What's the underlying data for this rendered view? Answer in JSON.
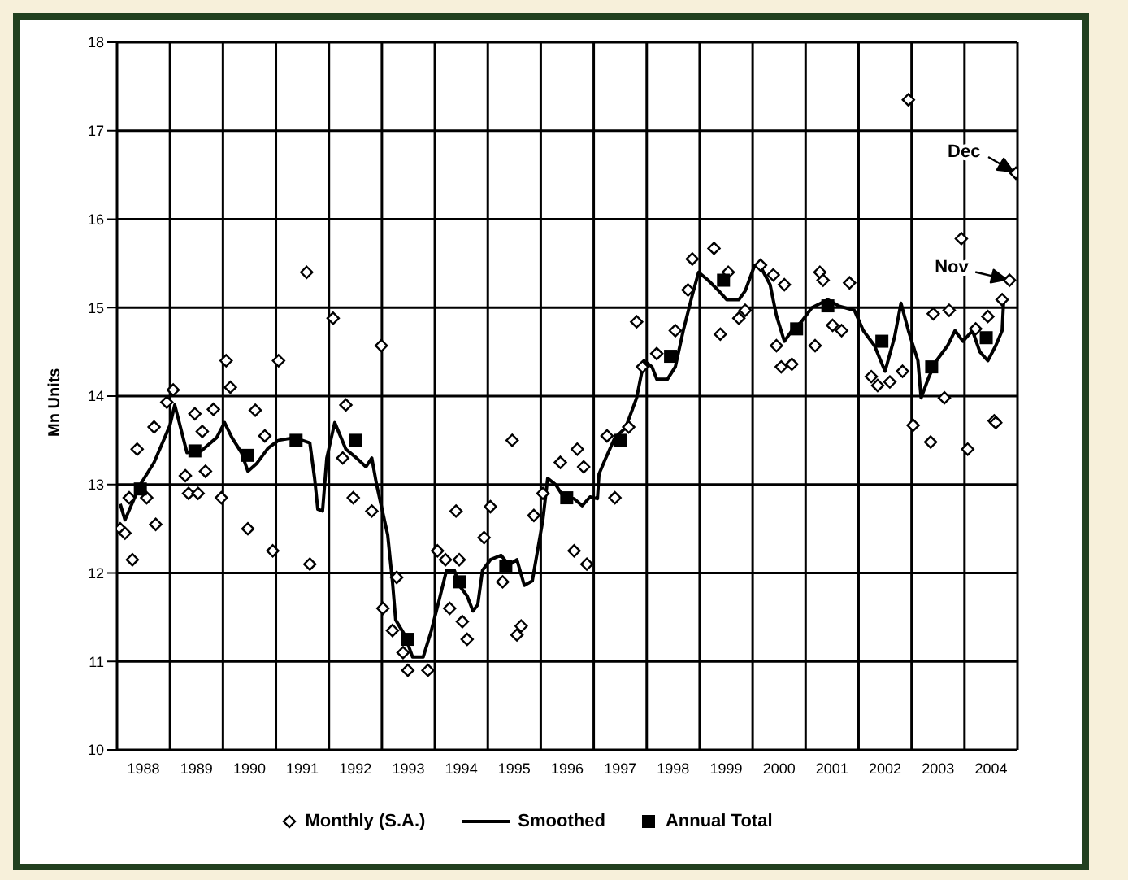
{
  "chart_data": {
    "type": "scatter",
    "ylabel": "Mn Units",
    "xlim": [
      1988,
      2005
    ],
    "xticks": [
      {
        "value": 1988,
        "label": null
      },
      {
        "value": 1988.5,
        "label": "1988"
      },
      {
        "value": 1989,
        "label": null
      },
      {
        "value": 1989.5,
        "label": "1989"
      },
      {
        "value": 1990,
        "label": null
      },
      {
        "value": 1990.5,
        "label": "1990"
      },
      {
        "value": 1991,
        "label": null
      },
      {
        "value": 1991.5,
        "label": "1991"
      },
      {
        "value": 1992,
        "label": null
      },
      {
        "value": 1992.5,
        "label": "1992"
      },
      {
        "value": 1993,
        "label": null
      },
      {
        "value": 1993.5,
        "label": "1993"
      },
      {
        "value": 1994,
        "label": null
      },
      {
        "value": 1994.5,
        "label": "1994"
      },
      {
        "value": 1995,
        "label": null
      },
      {
        "value": 1995.5,
        "label": "1995"
      },
      {
        "value": 1996,
        "label": null
      },
      {
        "value": 1996.5,
        "label": "1996"
      },
      {
        "value": 1997,
        "label": null
      },
      {
        "value": 1997.5,
        "label": "1997"
      },
      {
        "value": 1998,
        "label": null
      },
      {
        "value": 1998.5,
        "label": "1998"
      },
      {
        "value": 1999,
        "label": null
      },
      {
        "value": 1999.5,
        "label": "1999"
      },
      {
        "value": 2000,
        "label": null
      },
      {
        "value": 2000.5,
        "label": "2000"
      },
      {
        "value": 2001,
        "label": null
      },
      {
        "value": 2001.5,
        "label": "2001"
      },
      {
        "value": 2002,
        "label": null
      },
      {
        "value": 2002.5,
        "label": "2002"
      },
      {
        "value": 2003,
        "label": null
      },
      {
        "value": 2003.5,
        "label": "2003"
      },
      {
        "value": 2004,
        "label": null
      },
      {
        "value": 2004.5,
        "label": "2004"
      },
      {
        "value": 2005,
        "label": null
      }
    ],
    "ylim": [
      10,
      18
    ],
    "yticks": [
      10,
      11,
      12,
      13,
      14,
      15,
      16,
      17,
      18
    ],
    "grid": true,
    "legend": "bottom",
    "series": [
      {
        "name": "Monthly (S.A.)",
        "marker": "diamond",
        "color": "#000000",
        "x": [
          1988.06,
          1988.15,
          1988.29,
          1988.38,
          1988.23,
          1988.56,
          1988.73,
          1988.7,
          1988.94,
          1989.06,
          1989.29,
          1989.35,
          1989.53,
          1989.47,
          1989.61,
          1989.67,
          1989.82,
          1989.97,
          1990.06,
          1990.14,
          1990.47,
          1990.61,
          1990.79,
          1990.94,
          1991.05,
          1991.58,
          1991.64,
          1992.08,
          1992.26,
          1992.32,
          1992.46,
          1992.81,
          1992.99,
          1993.02,
          1993.2,
          1993.28,
          1993.4,
          1993.49,
          1993.87,
          1994.05,
          1994.2,
          1994.28,
          1994.4,
          1994.46,
          1994.52,
          1994.61,
          1994.93,
          1995.05,
          1995.28,
          1995.46,
          1995.55,
          1995.63,
          1995.87,
          1996.04,
          1996.37,
          1996.63,
          1996.69,
          1996.81,
          1996.87,
          1997.25,
          1997.4,
          1997.66,
          1997.81,
          1997.92,
          1998.19,
          1998.54,
          1998.78,
          1998.86,
          1999.27,
          1999.39,
          1999.54,
          1999.74,
          1999.86,
          2000.15,
          2000.39,
          2000.45,
          2000.54,
          2000.6,
          2000.74,
          2001.18,
          2001.27,
          2001.33,
          2001.51,
          2001.68,
          2001.83,
          2002.24,
          2002.36,
          2002.59,
          2002.83,
          2002.94,
          2003.03,
          2003.36,
          2003.41,
          2003.62,
          2003.71,
          2003.94,
          2004.06,
          2004.21,
          2004.44,
          2004.56,
          2004.59,
          2004.71,
          2004.85,
          2004.97
        ],
        "values": [
          12.5,
          12.45,
          12.15,
          13.4,
          12.85,
          12.85,
          12.55,
          13.65,
          13.93,
          14.07,
          13.1,
          12.9,
          12.9,
          13.8,
          13.6,
          13.15,
          13.85,
          12.85,
          14.4,
          14.1,
          12.5,
          13.84,
          13.55,
          12.25,
          14.4,
          15.4,
          12.1,
          14.88,
          13.3,
          13.9,
          12.85,
          12.7,
          14.57,
          11.6,
          11.35,
          11.95,
          11.1,
          10.9,
          10.9,
          12.25,
          12.15,
          11.6,
          12.7,
          12.15,
          11.45,
          11.25,
          12.4,
          12.75,
          11.9,
          13.5,
          11.3,
          11.4,
          12.65,
          12.9,
          13.25,
          12.25,
          13.4,
          13.2,
          12.1,
          13.55,
          12.85,
          13.65,
          14.84,
          14.33,
          14.48,
          14.74,
          15.2,
          15.55,
          15.67,
          14.7,
          15.4,
          14.88,
          14.97,
          15.48,
          15.37,
          14.57,
          14.33,
          15.26,
          14.36,
          14.57,
          15.4,
          15.31,
          14.8,
          14.74,
          15.28,
          14.22,
          14.12,
          14.16,
          14.28,
          17.35,
          13.67,
          13.48,
          14.93,
          13.98,
          14.97,
          15.78,
          13.4,
          14.76,
          14.9,
          13.72,
          13.7,
          15.09,
          15.31,
          16.52
        ]
      },
      {
        "name": "Smoothed",
        "type": "line",
        "marker": "none",
        "line_style": "solid",
        "color": "#000000",
        "x": [
          1988.06,
          1988.15,
          1988.44,
          1988.7,
          1989.0,
          1989.09,
          1989.32,
          1989.59,
          1989.88,
          1990.03,
          1990.17,
          1990.35,
          1990.47,
          1990.64,
          1990.85,
          1991.05,
          1991.35,
          1991.64,
          1991.73,
          1991.79,
          1991.88,
          1991.96,
          1992.11,
          1992.32,
          1992.52,
          1992.7,
          1992.81,
          1992.9,
          1993.11,
          1993.2,
          1993.26,
          1993.43,
          1993.58,
          1993.78,
          1993.93,
          1994.08,
          1994.22,
          1994.37,
          1994.46,
          1994.61,
          1994.72,
          1994.81,
          1994.9,
          1995.05,
          1995.25,
          1995.4,
          1995.55,
          1995.69,
          1995.84,
          1996.04,
          1996.13,
          1996.28,
          1996.43,
          1996.63,
          1996.78,
          1996.93,
          1997.07,
          1997.1,
          1997.22,
          1997.4,
          1997.6,
          1997.81,
          1997.95,
          1998.1,
          1998.19,
          1998.39,
          1998.54,
          1998.69,
          1998.86,
          1998.98,
          1999.16,
          1999.36,
          1999.51,
          1999.74,
          1999.86,
          2000.04,
          2000.18,
          2000.33,
          2000.45,
          2000.6,
          2000.74,
          2000.92,
          2001.12,
          2001.42,
          2001.62,
          2001.92,
          2002.09,
          2002.3,
          2002.5,
          2002.68,
          2002.8,
          2002.94,
          2003.12,
          2003.18,
          2003.33,
          2003.47,
          2003.68,
          2003.82,
          2003.97,
          2004.15,
          2004.29,
          2004.44,
          2004.59,
          2004.71,
          2004.74
        ],
        "values": [
          12.78,
          12.6,
          13.0,
          13.25,
          13.67,
          13.9,
          13.36,
          13.38,
          13.53,
          13.7,
          13.53,
          13.36,
          13.15,
          13.24,
          13.41,
          13.5,
          13.53,
          13.47,
          13.07,
          12.72,
          12.7,
          13.3,
          13.7,
          13.4,
          13.3,
          13.2,
          13.3,
          13.0,
          12.43,
          11.9,
          11.47,
          11.3,
          11.05,
          11.05,
          11.34,
          11.69,
          12.03,
          12.03,
          11.86,
          11.74,
          11.57,
          11.64,
          12.03,
          12.15,
          12.2,
          12.09,
          12.15,
          11.86,
          11.91,
          12.6,
          13.07,
          13.0,
          12.86,
          12.84,
          12.76,
          12.86,
          12.84,
          13.12,
          13.29,
          13.53,
          13.64,
          13.98,
          14.4,
          14.33,
          14.19,
          14.19,
          14.33,
          14.74,
          15.14,
          15.4,
          15.31,
          15.19,
          15.09,
          15.09,
          15.19,
          15.48,
          15.43,
          15.26,
          14.91,
          14.62,
          14.74,
          14.84,
          15.0,
          15.09,
          15.02,
          14.97,
          14.74,
          14.57,
          14.28,
          14.67,
          15.05,
          14.74,
          14.4,
          13.98,
          14.22,
          14.4,
          14.57,
          14.74,
          14.62,
          14.74,
          14.5,
          14.4,
          14.57,
          14.74,
          15.09
        ]
      },
      {
        "name": "Annual Total",
        "marker": "square",
        "color": "#000000",
        "x": [
          1988.44,
          1989.47,
          1990.47,
          1991.38,
          1992.5,
          1993.49,
          1994.46,
          1995.34,
          1996.49,
          1997.51,
          1998.45,
          1999.45,
          2000.83,
          2001.42,
          2002.44,
          2003.38,
          2004.41
        ],
        "values": [
          12.95,
          13.38,
          13.33,
          13.5,
          13.5,
          11.25,
          11.9,
          12.07,
          12.85,
          13.5,
          14.45,
          15.31,
          14.76,
          15.02,
          14.62,
          14.33,
          14.66
        ]
      }
    ],
    "annotations": [
      {
        "text": "Nov",
        "x": 2004.85,
        "y": 15.31
      },
      {
        "text": "Dec",
        "x": 2004.97,
        "y": 16.52
      }
    ]
  }
}
